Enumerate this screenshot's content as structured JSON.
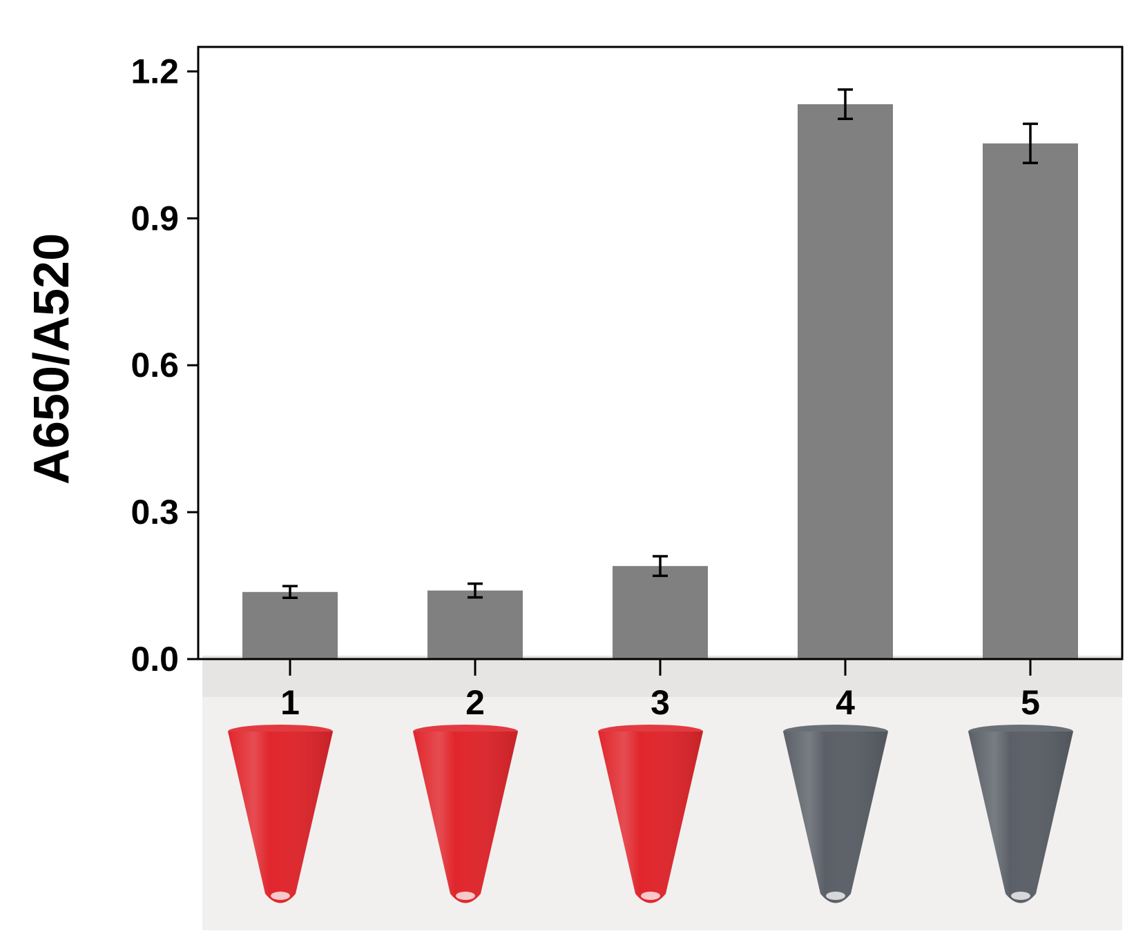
{
  "chart_data": {
    "type": "bar",
    "categories": [
      "1",
      "2",
      "3",
      "4",
      "5"
    ],
    "values": [
      0.137,
      0.14,
      0.19,
      1.133,
      1.053
    ],
    "errors": [
      0.012,
      0.014,
      0.02,
      0.03,
      0.04
    ],
    "ylabel": "A650/A520",
    "xlabel": "",
    "ylim": [
      0,
      1.25
    ],
    "yticks": [
      "0.0",
      "0.3",
      "0.6",
      "0.9",
      "1.2"
    ],
    "ytick_values": [
      0,
      0.3,
      0.6,
      0.9,
      1.2
    ],
    "grid": false,
    "bar_color": "#808080",
    "tube_colors": [
      "#e0262c",
      "#e0262c",
      "#e0262c",
      "#5b6068",
      "#5b6068"
    ],
    "tube_photo_background": "#f1f0ee"
  }
}
